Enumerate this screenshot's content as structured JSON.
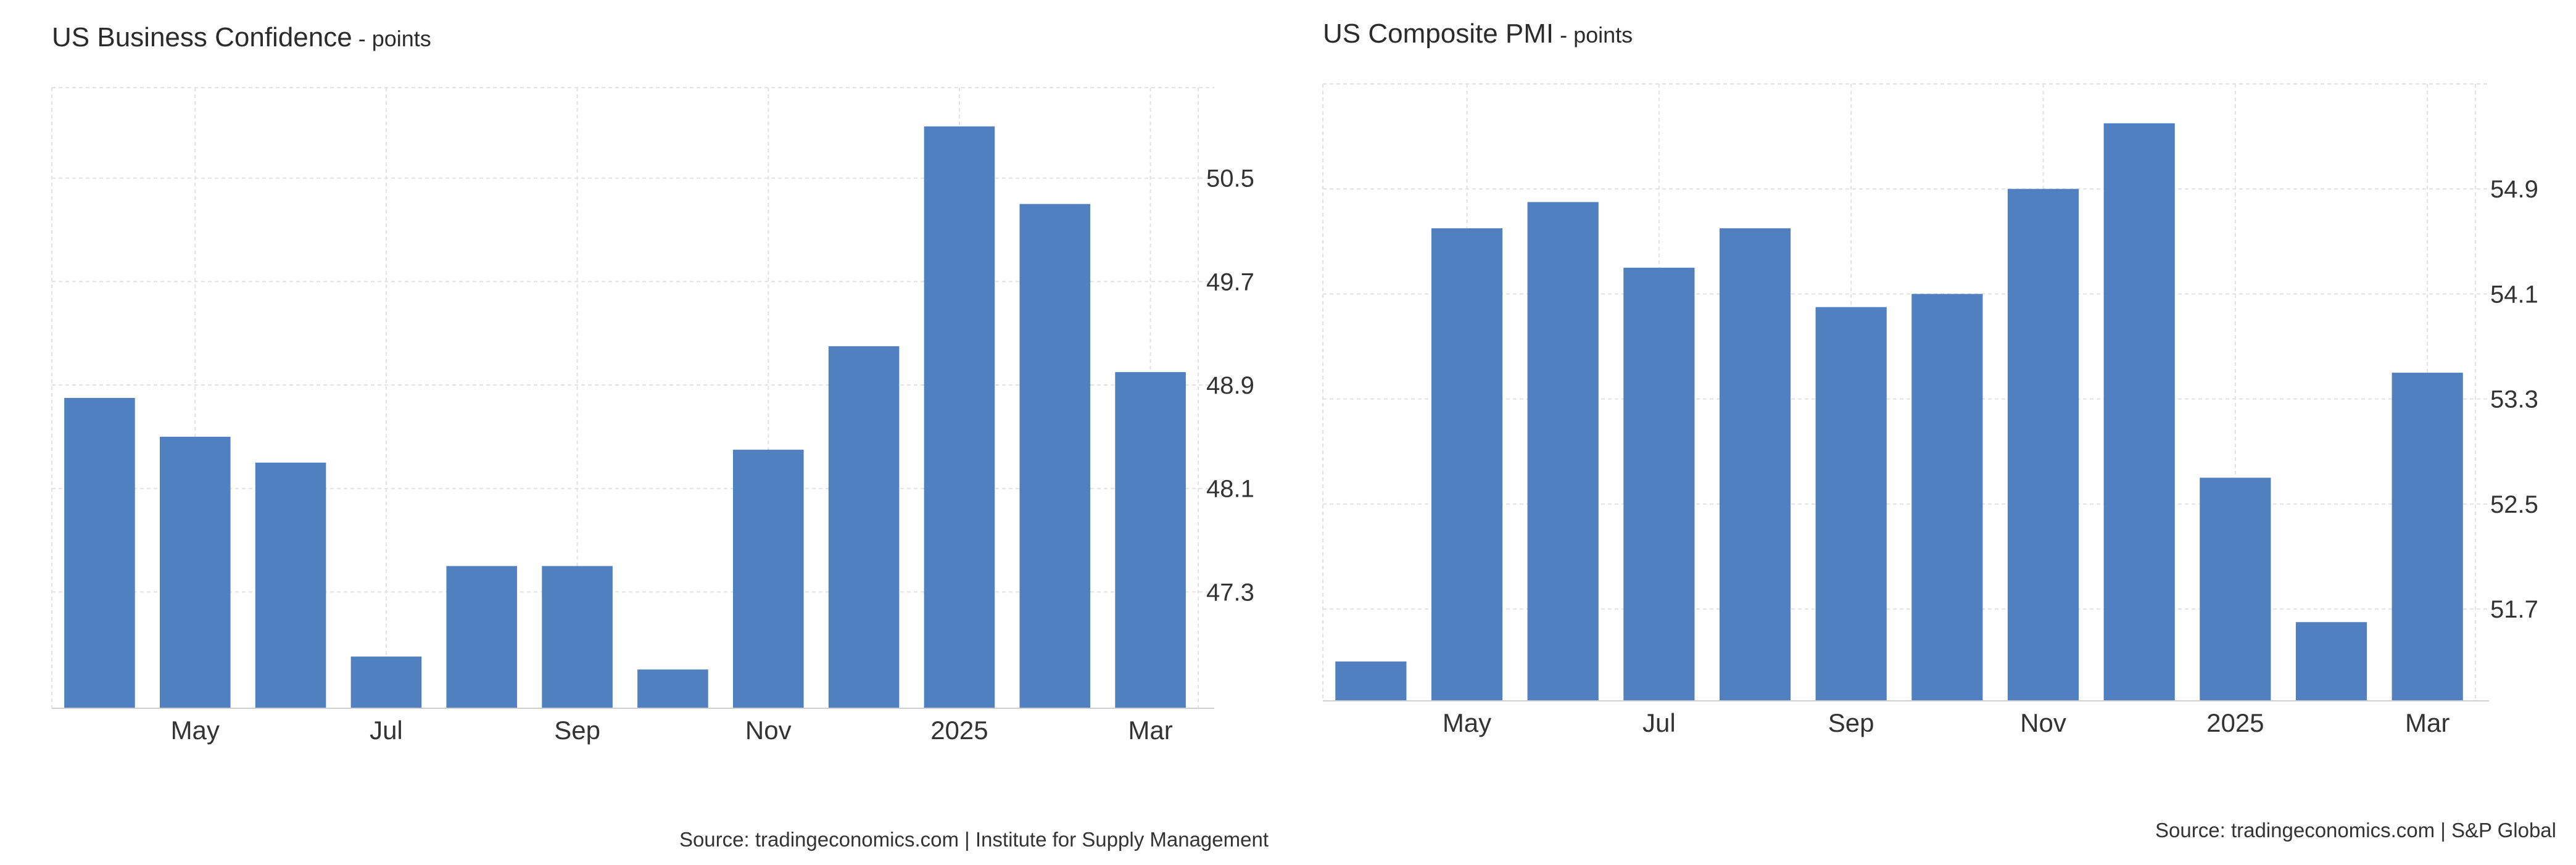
{
  "colors": {
    "bar": "#5080C0",
    "grid": "#E2E2E2",
    "axis_text": "#333333",
    "background": "#FFFFFF"
  },
  "chart_data": [
    {
      "type": "bar",
      "title": "US Business Confidence",
      "unit_label": " - points",
      "categories": [
        "Apr 2024",
        "May 2024",
        "Jun 2024",
        "Jul 2024",
        "Aug 2024",
        "Sep 2024",
        "Oct 2024",
        "Nov 2024",
        "Dec 2024",
        "Jan 2025",
        "Feb 2025",
        "Mar 2025"
      ],
      "values": [
        48.8,
        48.5,
        48.3,
        46.8,
        47.5,
        47.5,
        46.7,
        48.4,
        49.2,
        50.9,
        50.3,
        49.0
      ],
      "x_tick_labels": [
        {
          "category": "May 2024",
          "label": "May"
        },
        {
          "category": "Jul 2024",
          "label": "Jul"
        },
        {
          "category": "Sep 2024",
          "label": "Sep"
        },
        {
          "category": "Nov 2024",
          "label": "Nov"
        },
        {
          "category": "Jan 2025",
          "label": "2025"
        },
        {
          "category": "Mar 2025",
          "label": "Mar"
        }
      ],
      "y_ticks": [
        "47.3",
        "48.1",
        "48.9",
        "49.7",
        "50.5"
      ],
      "ylim": [
        46.4,
        51.2
      ],
      "y_axis_side": "right",
      "grid": true,
      "source": "Source: tradingeconomics.com | Institute for Supply Management"
    },
    {
      "type": "bar",
      "title": "US Composite PMI",
      "unit_label": " - points",
      "categories": [
        "Apr 2024",
        "May 2024",
        "Jun 2024",
        "Jul 2024",
        "Aug 2024",
        "Sep 2024",
        "Oct 2024",
        "Nov 2024",
        "Dec 2024",
        "Jan 2025",
        "Feb 2025",
        "Mar 2025"
      ],
      "values": [
        51.3,
        54.6,
        54.8,
        54.3,
        54.6,
        54.0,
        54.1,
        54.9,
        55.4,
        52.7,
        51.6,
        53.5
      ],
      "x_tick_labels": [
        {
          "category": "May 2024",
          "label": "May"
        },
        {
          "category": "Jul 2024",
          "label": "Jul"
        },
        {
          "category": "Sep 2024",
          "label": "Sep"
        },
        {
          "category": "Nov 2024",
          "label": "Nov"
        },
        {
          "category": "Jan 2025",
          "label": "2025"
        },
        {
          "category": "Mar 2025",
          "label": "Mar"
        }
      ],
      "y_ticks": [
        "51.7",
        "52.5",
        "53.3",
        "54.1",
        "54.9"
      ],
      "ylim": [
        51.0,
        55.7
      ],
      "y_axis_side": "right",
      "grid": true,
      "source": "Source: tradingeconomics.com | S&P Global"
    }
  ]
}
